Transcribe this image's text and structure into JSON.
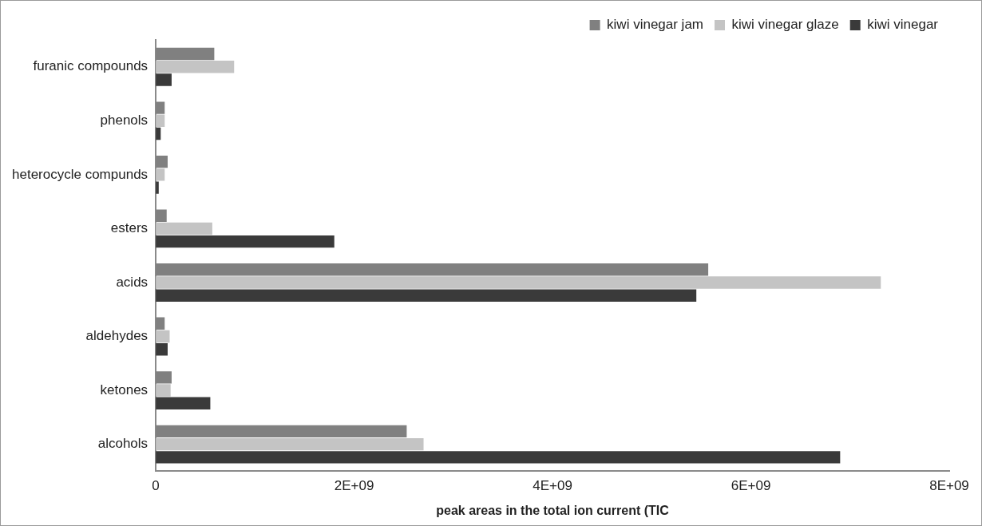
{
  "chart_data": {
    "type": "bar",
    "orientation": "horizontal",
    "x_label": "peak areas in the total ion current (TIC",
    "categories": [
      "furanic compounds",
      "phenols",
      "heterocycle compunds",
      "esters",
      "acids",
      "aldehydes",
      "ketones",
      "alcohols"
    ],
    "series": [
      {
        "name": "kiwi vinegar jam",
        "color": "#808080",
        "values": [
          590000000,
          90000000,
          120000000,
          110000000,
          5570000000,
          90000000,
          160000000,
          2530000000
        ]
      },
      {
        "name": "kiwi vinegar glaze",
        "color": "#c4c4c4",
        "values": [
          790000000,
          90000000,
          90000000,
          570000000,
          7310000000,
          140000000,
          150000000,
          2700000000
        ]
      },
      {
        "name": "kiwi vinegar",
        "color": "#3a3a3a",
        "values": [
          160000000,
          50000000,
          30000000,
          1800000000,
          5450000000,
          120000000,
          550000000,
          6900000000
        ]
      }
    ],
    "xlim": [
      0,
      8000000000
    ],
    "xticks": [
      0,
      {
        "value": 2000000000,
        "label": "2E+09"
      },
      {
        "value": 4000000000,
        "label": "4E+09"
      },
      {
        "value": 6000000000,
        "label": "6E+09"
      },
      {
        "value": 8000000000,
        "label": "8E+09"
      }
    ],
    "grid": false,
    "legend": "top-right"
  }
}
